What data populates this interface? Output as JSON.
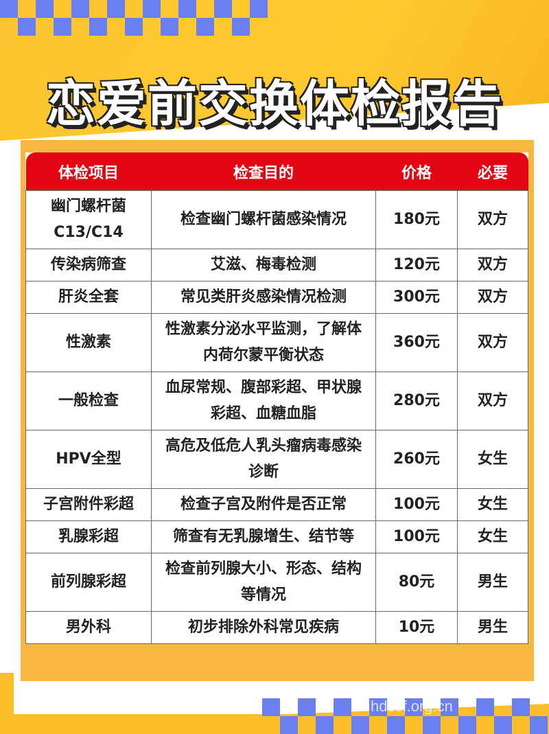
{
  "title": "恋爱前交换体检报告",
  "colors": {
    "accent_red": "#e30613",
    "yellow": "#fbc531",
    "blue": "#6a7ff0",
    "card_orange": "#f8b740"
  },
  "table": {
    "headers": [
      "体检项目",
      "检查目的",
      "价格",
      "必要"
    ],
    "rows": [
      {
        "item": "幽门螺杆菌C13/C14",
        "purpose": "检查幽门螺杆菌感染情况",
        "price": "180元",
        "need": "双方"
      },
      {
        "item": "传染病筛查",
        "purpose": "艾滋、梅毒检测",
        "price": "120元",
        "need": "双方"
      },
      {
        "item": "肝炎全套",
        "purpose": "常见类肝炎感染情况检测",
        "price": "300元",
        "need": "双方"
      },
      {
        "item": "性激素",
        "purpose": "性激素分泌水平监测，了解体内荷尔蒙平衡状态",
        "price": "360元",
        "need": "双方"
      },
      {
        "item": "一般检查",
        "purpose": "血尿常规、腹部彩超、甲状腺彩超、血糖血脂",
        "price": "280元",
        "need": "双方"
      },
      {
        "item": "HPV全型",
        "purpose": "高危及低危人乳头瘤病毒感染诊断",
        "price": "260元",
        "need": "女生"
      },
      {
        "item": "子宫附件彩超",
        "purpose": "检查子宫及附件是否正常",
        "price": "100元",
        "need": "女生"
      },
      {
        "item": "乳腺彩超",
        "purpose": "筛查有无乳腺增生、结节等",
        "price": "100元",
        "need": "女生"
      },
      {
        "item": "前列腺彩超",
        "purpose": "检查前列腺大小、形态、结构等情况",
        "price": "80元",
        "need": "男生"
      },
      {
        "item": "男外科",
        "purpose": "初步排除外科常见疾病",
        "price": "10元",
        "need": "男生"
      }
    ]
  },
  "watermark": "hdccf.org.cn"
}
